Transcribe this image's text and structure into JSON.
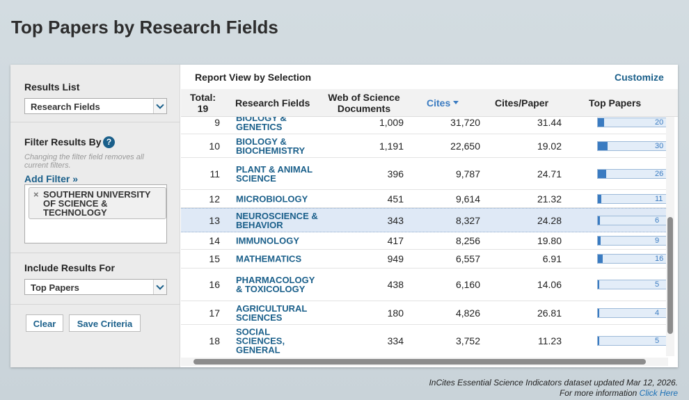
{
  "header": {
    "title": "Top Papers by Research Fields"
  },
  "sidebar": {
    "results_list": {
      "label": "Results List",
      "selected": "Research Fields"
    },
    "filter": {
      "label": "Filter Results By",
      "help": "?",
      "note": "Changing the filter field removes all current filters.",
      "add_filter": "Add Filter »",
      "remove": "×",
      "filters": [
        "SOUTHERN UNIVERSITY OF SCIENCE & TECHNOLOGY"
      ]
    },
    "include": {
      "label": "Include Results For",
      "selected": "Top Papers"
    },
    "buttons": [
      "Clear",
      "Save Criteria"
    ]
  },
  "report": {
    "title": "Report View by Selection",
    "customize": "Customize",
    "table": {
      "total_label": "Total:",
      "total": 19,
      "columns": [
        "Research Fields",
        "Web of Science Documents",
        "Cites",
        "Cites/Paper",
        "Top Papers"
      ],
      "rows": [
        [
          9,
          "BIOLOGY & GENETICS",
          "1,009",
          "31,720",
          "31.44",
          20
        ],
        [
          10,
          "BIOLOGY & BIOCHEMISTRY",
          "1,191",
          "22,650",
          "19.02",
          30
        ],
        [
          11,
          "PLANT & ANIMAL SCIENCE",
          "396",
          "9,787",
          "24.71",
          26
        ],
        [
          12,
          "MICROBIOLOGY",
          "451",
          "9,614",
          "21.32",
          11
        ],
        [
          13,
          "NEUROSCIENCE & BEHAVIOR",
          "343",
          "8,327",
          "24.28",
          6
        ],
        [
          14,
          "IMMUNOLOGY",
          "417",
          "8,256",
          "19.80",
          9
        ],
        [
          15,
          "MATHEMATICS",
          "949",
          "6,557",
          "6.91",
          16
        ],
        [
          16,
          "PHARMACOLOGY & TOXICOLOGY",
          "438",
          "6,160",
          "14.06",
          5
        ],
        [
          17,
          "AGRICULTURAL SCIENCES",
          "180",
          "4,826",
          "26.81",
          4
        ],
        [
          18,
          "SOCIAL SCIENCES, GENERAL",
          "334",
          "3,752",
          "11.23",
          5
        ]
      ]
    }
  },
  "footer": {
    "updated": "InCites Essential Science Indicators dataset updated Mar 12, 2026.",
    "more": "For more information",
    "link": "Click Here"
  }
}
